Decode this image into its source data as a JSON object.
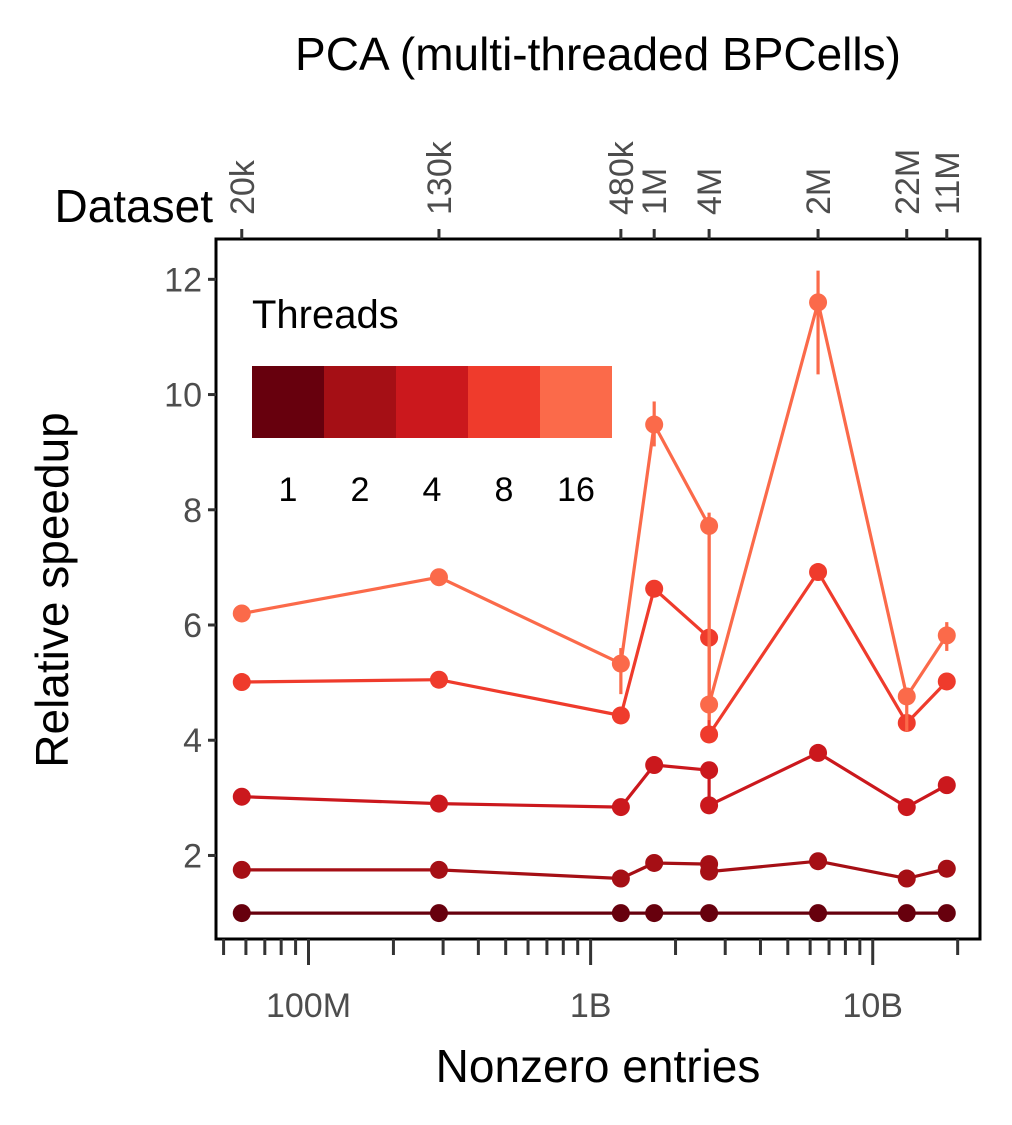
{
  "chart_data": {
    "type": "line",
    "title": "PCA (multi-threaded BPCells)",
    "xlabel": "Nonzero entries",
    "ylabel": "Relative speedup",
    "x_scale": "log",
    "xlim": [
      47000000,
      24000000000
    ],
    "ylim": [
      0.55,
      12.7
    ],
    "x_ticks": [
      {
        "value": 100000000,
        "label": "100M"
      },
      {
        "value": 1000000000,
        "label": "1B"
      },
      {
        "value": 10000000000,
        "label": "10B"
      }
    ],
    "y_ticks": [
      2,
      4,
      6,
      8,
      10,
      12
    ],
    "top_axis_title": "Dataset",
    "datasets": [
      {
        "label": "20k",
        "x": 58000000
      },
      {
        "label": "130k",
        "x": 290000000
      },
      {
        "label": "480k",
        "x": 1280000000
      },
      {
        "label": "1M",
        "x": 1680000000
      },
      {
        "label": "4M",
        "x": 2630000000
      },
      {
        "label": "2M",
        "x": 6400000000
      },
      {
        "label": "22M",
        "x": 13200000000
      },
      {
        "label": "11M",
        "x": 18300000000
      }
    ],
    "legend": {
      "title": "Threads",
      "placement": "top-left",
      "labels": [
        "1",
        "2",
        "4",
        "8",
        "16"
      ],
      "colors": [
        "#67000D",
        "#A50F15",
        "#CB181D",
        "#EF3B2C",
        "#FB6A4A"
      ]
    },
    "grid": false,
    "series": [
      {
        "name": "1",
        "color": "#67000D",
        "points": [
          {
            "x": 58000000,
            "y": 1.0
          },
          {
            "x": 290000000,
            "y": 1.0
          },
          {
            "x": 1280000000,
            "y": 1.0
          },
          {
            "x": 1680000000,
            "y": 1.0
          },
          {
            "x": 2630000000,
            "y": 1.0
          },
          {
            "x": 6400000000,
            "y": 1.0
          },
          {
            "x": 13200000000,
            "y": 1.0
          },
          {
            "x": 18300000000,
            "y": 1.0
          }
        ]
      },
      {
        "name": "2",
        "color": "#A50F15",
        "points": [
          {
            "x": 58000000,
            "y": 1.75
          },
          {
            "x": 290000000,
            "y": 1.75
          },
          {
            "x": 1280000000,
            "y": 1.6
          },
          {
            "x": 1680000000,
            "y": 1.87
          },
          {
            "x": 2630000000,
            "y": 1.85
          },
          {
            "x": 2630000000,
            "y": 1.72
          },
          {
            "x": 6400000000,
            "y": 1.9
          },
          {
            "x": 13200000000,
            "y": 1.6
          },
          {
            "x": 18300000000,
            "y": 1.77
          }
        ]
      },
      {
        "name": "4",
        "color": "#CB181D",
        "points": [
          {
            "x": 58000000,
            "y": 3.02
          },
          {
            "x": 290000000,
            "y": 2.9
          },
          {
            "x": 1280000000,
            "y": 2.84
          },
          {
            "x": 1680000000,
            "y": 3.57
          },
          {
            "x": 2630000000,
            "y": 3.48
          },
          {
            "x": 2630000000,
            "y": 2.87
          },
          {
            "x": 6400000000,
            "y": 3.78
          },
          {
            "x": 13200000000,
            "y": 2.84
          },
          {
            "x": 18300000000,
            "y": 3.22
          }
        ]
      },
      {
        "name": "8",
        "color": "#EF3B2C",
        "points": [
          {
            "x": 58000000,
            "y": 5.01
          },
          {
            "x": 290000000,
            "y": 5.05
          },
          {
            "x": 1280000000,
            "y": 4.43
          },
          {
            "x": 1680000000,
            "y": 6.63
          },
          {
            "x": 2630000000,
            "y": 5.78
          },
          {
            "x": 2630000000,
            "y": 4.1
          },
          {
            "x": 6400000000,
            "y": 6.92
          },
          {
            "x": 13200000000,
            "y": 4.3
          },
          {
            "x": 18300000000,
            "y": 5.02
          }
        ]
      },
      {
        "name": "16",
        "color": "#FB6A4A",
        "points": [
          {
            "x": 58000000,
            "y": 6.2
          },
          {
            "x": 290000000,
            "y": 6.83
          },
          {
            "x": 1280000000,
            "y": 5.33,
            "err": [
              4.8,
              5.6
            ]
          },
          {
            "x": 1680000000,
            "y": 9.48,
            "err": [
              9.1,
              9.88
            ]
          },
          {
            "x": 2630000000,
            "y": 7.72,
            "err": [
              4.35,
              7.95
            ]
          },
          {
            "x": 2630000000,
            "y": 4.62
          },
          {
            "x": 6400000000,
            "y": 11.6,
            "err": [
              10.35,
              12.15
            ]
          },
          {
            "x": 13200000000,
            "y": 4.76,
            "err": [
              4.15,
              4.9
            ]
          },
          {
            "x": 18300000000,
            "y": 5.82,
            "err": [
              5.55,
              6.05
            ]
          }
        ]
      }
    ]
  }
}
